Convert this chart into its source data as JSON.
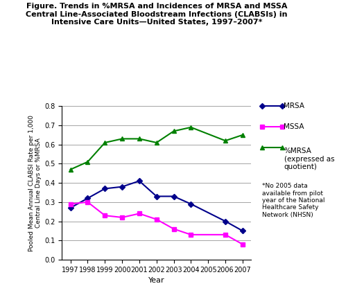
{
  "title_line1": "Figure. Trends in %MRSA and Incidences of MRSA and MSSA",
  "title_line2": "Central Line-Associated Bloodstream Infections (CLABSIs) in",
  "title_line3": "Intensive Care Units—United States, 1997–2007*",
  "ylabel": "Pooled Mean Annual CLABSI Rate per 1,000\nCentral Line Days or %MRSA",
  "xlabel": "Year",
  "years_mrsa": [
    1997,
    1998,
    1999,
    2000,
    2001,
    2002,
    2003,
    2004,
    2006,
    2007
  ],
  "mrsa_values": [
    0.27,
    0.32,
    0.37,
    0.38,
    0.41,
    0.33,
    0.33,
    0.29,
    0.2,
    0.15
  ],
  "years_mssa": [
    1997,
    1998,
    1999,
    2000,
    2001,
    2002,
    2003,
    2004,
    2006,
    2007
  ],
  "mssa_values": [
    0.29,
    0.3,
    0.23,
    0.22,
    0.24,
    0.21,
    0.16,
    0.13,
    0.13,
    0.08
  ],
  "years_pct": [
    1997,
    1998,
    1999,
    2000,
    2001,
    2002,
    2003,
    2004,
    2006,
    2007
  ],
  "pct_values": [
    0.47,
    0.51,
    0.61,
    0.63,
    0.63,
    0.61,
    0.67,
    0.69,
    0.62,
    0.65
  ],
  "mrsa_color": "#00008B",
  "mssa_color": "#FF00FF",
  "pct_color": "#008000",
  "ylim": [
    0,
    0.8
  ],
  "yticks": [
    0,
    0.1,
    0.2,
    0.3,
    0.4,
    0.5,
    0.6,
    0.7,
    0.8
  ],
  "xticks": [
    1997,
    1998,
    1999,
    2000,
    2001,
    2002,
    2003,
    2004,
    2005,
    2006,
    2007
  ],
  "legend_mrsa": "MRSA",
  "legend_mssa": "MSSA",
  "legend_pct": "%MRSA\n(expressed as\nquotient)",
  "footnote": "*No 2005 data\navailable from pilot\nyear of the National\nHealthcare Safety\nNetwork (NHSN)"
}
